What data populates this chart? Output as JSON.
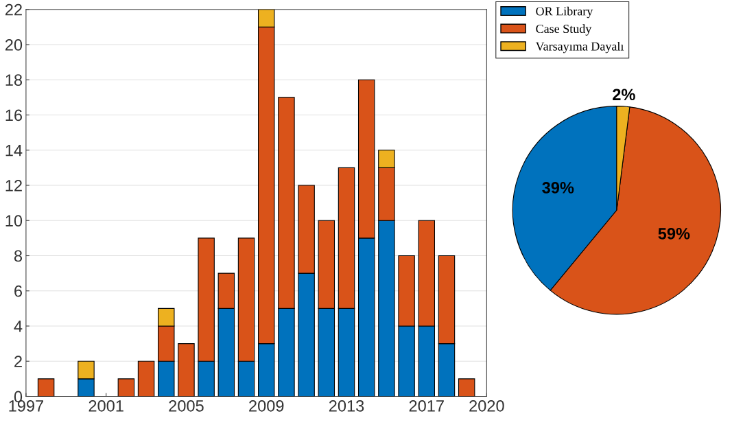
{
  "chart_data": [
    {
      "type": "bar",
      "stacked": true,
      "x": [
        1998,
        1999,
        2000,
        2001,
        2002,
        2003,
        2004,
        2005,
        2006,
        2007,
        2008,
        2009,
        2010,
        2011,
        2012,
        2013,
        2014,
        2015,
        2016,
        2017,
        2018,
        2019
      ],
      "series": [
        {
          "name": "OR Library",
          "color": "#0072bd",
          "values": [
            0,
            0,
            1,
            0,
            0,
            0,
            2,
            0,
            2,
            5,
            2,
            3,
            5,
            7,
            5,
            5,
            9,
            10,
            4,
            4,
            3,
            0
          ]
        },
        {
          "name": "Case Study",
          "color": "#d95319",
          "values": [
            1,
            0,
            0,
            0,
            1,
            2,
            2,
            3,
            7,
            2,
            7,
            18,
            12,
            5,
            5,
            8,
            9,
            3,
            4,
            6,
            5,
            1
          ]
        },
        {
          "name": "Varsayıma Dayalı",
          "color": "#edb120",
          "values": [
            0,
            0,
            1,
            0,
            0,
            0,
            1,
            0,
            0,
            0,
            0,
            1,
            0,
            0,
            0,
            0,
            0,
            1,
            0,
            0,
            0,
            0
          ]
        }
      ],
      "xlim": [
        1997,
        2020
      ],
      "xticks": [
        1997,
        2001,
        2005,
        2009,
        2013,
        2017,
        2020
      ],
      "ylim": [
        0,
        22
      ],
      "yticks": [
        0,
        2,
        4,
        6,
        8,
        10,
        12,
        14,
        16,
        18,
        20,
        22
      ],
      "grid": "y",
      "legend": "right"
    },
    {
      "type": "pie",
      "categories": [
        null,
        null,
        null
      ],
      "values": [
        39,
        59,
        2
      ],
      "colors": [
        "#0072bd",
        "#d95319",
        "#edb120"
      ],
      "value_labels": [
        "39%",
        "59%",
        "2%"
      ]
    }
  ]
}
